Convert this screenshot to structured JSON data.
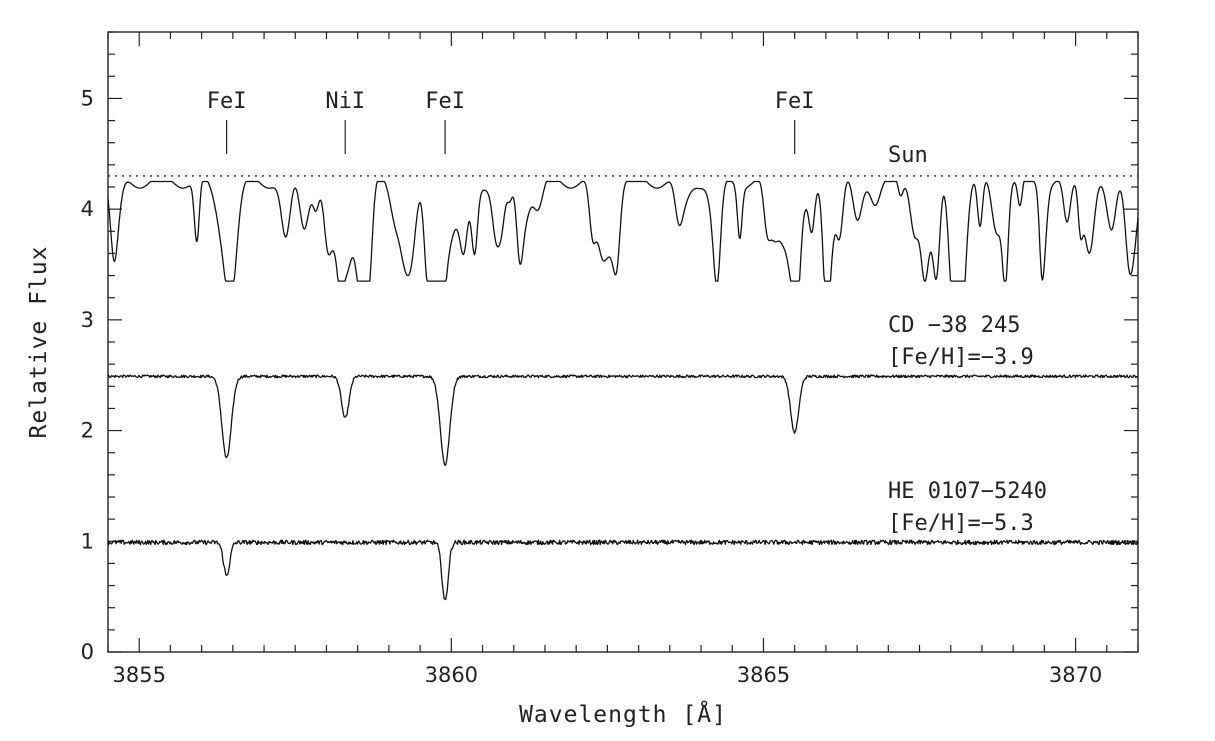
{
  "chart_data": {
    "type": "line",
    "xlabel": "Wavelength [Å]",
    "ylabel": "Relative Flux",
    "xlim": [
      3854.5,
      3871.0
    ],
    "ylim": [
      0,
      5.6
    ],
    "x_ticks": [
      3855,
      3860,
      3865,
      3870
    ],
    "y_ticks": [
      0,
      1,
      2,
      3,
      4,
      5
    ],
    "x_minor_step": 0.5,
    "y_minor_step": 0.2,
    "grid": false,
    "legend": "none",
    "line_color": "#111111",
    "line_annotations": [
      {
        "label": "FeI",
        "x": 3856.4
      },
      {
        "label": "NiI",
        "x": 3858.3
      },
      {
        "label": "FeI",
        "x": 3859.9
      },
      {
        "label": "FeI",
        "x": 3865.5
      }
    ],
    "reference_line": {
      "y": 4.3,
      "style": "dotted",
      "label": "Sun"
    },
    "series": [
      {
        "labels": [
          "Sun"
        ],
        "continuum": 4.3,
        "baseline": 3.85,
        "noise": 0.28,
        "lines": [
          {
            "x": 3856.4,
            "depth": 0.55,
            "width": 0.14
          },
          {
            "x": 3858.3,
            "depth": 0.45,
            "width": 0.1
          },
          {
            "x": 3859.9,
            "depth": 0.55,
            "width": 0.22
          },
          {
            "x": 3865.5,
            "depth": 0.55,
            "width": 0.12
          }
        ],
        "range": [
          3.35,
          4.25
        ]
      },
      {
        "labels": [
          "CD −38 245",
          "[Fe/H]=−3.9"
        ],
        "continuum": 2.49,
        "noise": 0.012,
        "lines": [
          {
            "x": 3856.4,
            "depth": 0.74,
            "width": 0.075
          },
          {
            "x": 3858.3,
            "depth": 0.38,
            "width": 0.06
          },
          {
            "x": 3859.9,
            "depth": 0.8,
            "width": 0.075
          },
          {
            "x": 3865.5,
            "depth": 0.51,
            "width": 0.065
          }
        ]
      },
      {
        "labels": [
          "HE 0107−5240",
          "[Fe/H]=−5.3"
        ],
        "continuum": 0.99,
        "noise": 0.02,
        "lines": [
          {
            "x": 3856.4,
            "depth": 0.3,
            "width": 0.05
          },
          {
            "x": 3859.9,
            "depth": 0.53,
            "width": 0.05
          }
        ]
      }
    ]
  }
}
